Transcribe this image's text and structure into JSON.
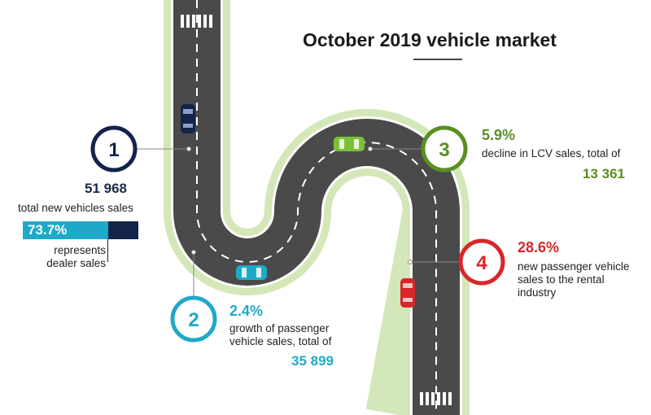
{
  "title": "October 2019 vehicle market",
  "stats": [
    {
      "number": "1",
      "value": "51 968",
      "description": "total new vehicles sales",
      "color": "#13234a"
    },
    {
      "number": "2",
      "percent": "2.4%",
      "description_line1": "growth of passenger",
      "description_line2": "vehicle sales, total of",
      "total": "35 899",
      "color": "#1ea9c9"
    },
    {
      "number": "3",
      "percent": "5.9%",
      "description": "decline in LCV sales, total of",
      "total": "13 361",
      "color": "#5a8f22"
    },
    {
      "number": "4",
      "percent": "28.6%",
      "description_line1": "new passenger vehicle",
      "description_line2": "sales to the rental",
      "description_line3": "industry",
      "color": "#d8262a"
    }
  ],
  "dealer_bar": {
    "percent": "73.7%",
    "fraction": 0.737,
    "label_line1": "represents",
    "label_line2": "dealer sales"
  },
  "colors": {
    "road": "#4a4a4a",
    "road_edge": "#d4e7b8",
    "navy": "#13234a",
    "cyan": "#1ea9c9",
    "green": "#5a8f22",
    "red": "#d8262a"
  },
  "icons": [
    "car-navy-icon",
    "car-cyan-icon",
    "car-green-icon",
    "car-red-icon",
    "crosswalk-icon"
  ]
}
